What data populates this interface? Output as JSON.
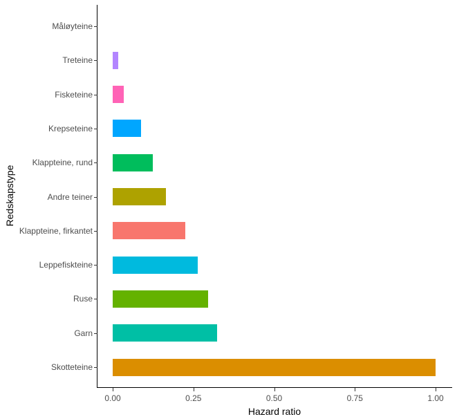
{
  "chart_data": {
    "type": "bar",
    "orientation": "horizontal",
    "title": "",
    "xlabel": "Hazard ratio",
    "ylabel": "Redskapstype",
    "xlim": [
      0,
      1.0
    ],
    "x_ticks": [
      "0.00",
      "0.25",
      "0.50",
      "0.75",
      "1.00"
    ],
    "grid": false,
    "legend": "none",
    "categories": [
      "Skotteteine",
      "Garn",
      "Ruse",
      "Leppefiskteine",
      "Klappteine, firkantet",
      "Andre teiner",
      "Klappteine, rund",
      "Krepseteine",
      "Fisketeine",
      "Treteine",
      "Måløyteine"
    ],
    "values": [
      1.0,
      0.323,
      0.296,
      0.263,
      0.225,
      0.165,
      0.124,
      0.088,
      0.034,
      0.017,
      0.0
    ],
    "colors": [
      "#DB8E00",
      "#00BFA5",
      "#64B200",
      "#00BADE",
      "#F8766D",
      "#AEA200",
      "#00BD5C",
      "#00A6FF",
      "#FF63B6",
      "#B385FF",
      "#EF67EB"
    ]
  }
}
